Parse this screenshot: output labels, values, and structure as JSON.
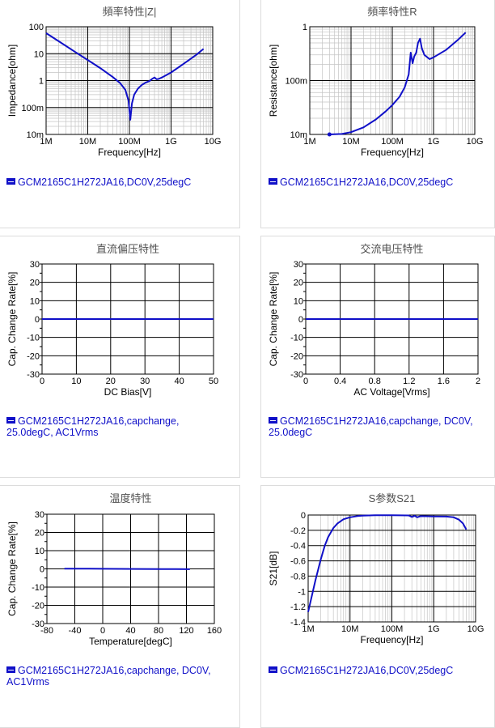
{
  "charts": [
    {
      "id": "c1",
      "title": "頻率特性|Z|",
      "xlabel": "Frequency[Hz]",
      "ylabel": "Impedance[ohm]",
      "legend": "GCM2165C1H272JA16,DC0V,25degC",
      "chart_data": {
        "type": "line",
        "title": "頻率特性|Z|",
        "xlabel": "Frequency[Hz]",
        "ylabel": "Impedance[ohm]",
        "xscale": "log",
        "yscale": "log",
        "xlim": [
          1000000,
          10000000000
        ],
        "ylim": [
          0.01,
          100
        ],
        "xticks": [
          1000000,
          10000000,
          100000000,
          1000000000,
          10000000000
        ],
        "xticklabels": [
          "1M",
          "10M",
          "100M",
          "1G",
          "10G"
        ],
        "yticks": [
          0.01,
          0.1,
          1,
          10,
          100
        ],
        "yticklabels": [
          "10m",
          "100m",
          "1",
          "10",
          "100"
        ],
        "grid": true,
        "series": [
          {
            "name": "GCM2165C1H272JA16,DC0V,25degC",
            "color": "#1010c8",
            "x": [
              1000000,
              2000000,
              5000000,
              10000000,
              20000000,
              40000000,
              60000000,
              80000000,
              95000000,
              105000000,
              115000000,
              130000000,
              160000000,
              200000000,
              250000000,
              300000000,
              350000000,
              400000000,
              450000000,
              500000000,
              600000000,
              800000000,
              1000000000,
              2000000000,
              4000000000,
              6000000000
            ],
            "y": [
              58,
              29,
              11.5,
              5.8,
              2.9,
              1.35,
              0.8,
              0.45,
              0.18,
              0.035,
              0.14,
              0.3,
              0.5,
              0.7,
              0.85,
              0.95,
              1.15,
              1.3,
              1.12,
              1.15,
              1.3,
              1.65,
              2.0,
              4.2,
              9.0,
              15
            ]
          }
        ]
      }
    },
    {
      "id": "c2",
      "title": "頻率特性R",
      "xlabel": "Frequency[Hz]",
      "ylabel": "Resistance[ohm]",
      "legend": "GCM2165C1H272JA16,DC0V,25degC",
      "chart_data": {
        "type": "line",
        "title": "頻率特性R",
        "xlabel": "Frequency[Hz]",
        "ylabel": "Resistance[ohm]",
        "xscale": "log",
        "yscale": "log",
        "xlim": [
          1000000,
          10000000000
        ],
        "ylim": [
          0.01,
          1
        ],
        "xticks": [
          1000000,
          10000000,
          100000000,
          1000000000,
          10000000000
        ],
        "xticklabels": [
          "1M",
          "10M",
          "100M",
          "1G",
          "10G"
        ],
        "yticks": [
          0.01,
          0.1,
          1
        ],
        "yticklabels": [
          "10m",
          "100m",
          "1"
        ],
        "grid": true,
        "series": [
          {
            "name": "GCM2165C1H272JA16,DC0V,25degC",
            "color": "#1010c8",
            "x": [
              3000000,
              6000000,
              10000000,
              20000000,
              40000000,
              70000000,
              100000000,
              150000000,
              200000000,
              250000000,
              280000000,
              310000000,
              340000000,
              380000000,
              420000000,
              470000000,
              520000000,
              600000000,
              800000000,
              1000000000,
              2000000000,
              4000000000,
              6000000000
            ],
            "y": [
              0.01,
              0.0102,
              0.011,
              0.0135,
              0.019,
              0.027,
              0.035,
              0.05,
              0.075,
              0.13,
              0.33,
              0.21,
              0.28,
              0.33,
              0.5,
              0.6,
              0.4,
              0.3,
              0.25,
              0.27,
              0.37,
              0.58,
              0.78
            ]
          }
        ],
        "markers": [
          {
            "x": 3000000,
            "y": 0.01
          }
        ]
      }
    },
    {
      "id": "c3",
      "title": "直流偏压特性",
      "xlabel": "DC Bias[V]",
      "ylabel": "Cap. Change Rate[%]",
      "legend": "GCM2165C1H272JA16,capchange, 25.0degC, AC1Vrms",
      "chart_data": {
        "type": "line",
        "title": "直流偏压特性",
        "xlabel": "DC Bias[V]",
        "ylabel": "Cap. Change Rate[%]",
        "xlim": [
          0,
          50
        ],
        "ylim": [
          -30,
          30
        ],
        "xticks": [
          0,
          10,
          20,
          30,
          40,
          50
        ],
        "yticks": [
          -30,
          -20,
          -10,
          0,
          10,
          20,
          30
        ],
        "minor_y": 5,
        "grid": true,
        "series": [
          {
            "name": "GCM2165C1H272JA16,capchange, 25.0degC, AC1Vrms",
            "color": "#1010c8",
            "x": [
              0,
              10,
              20,
              30,
              40,
              50
            ],
            "y": [
              0,
              0,
              0,
              0,
              0,
              0
            ]
          }
        ]
      }
    },
    {
      "id": "c4",
      "title": "交流电压特性",
      "xlabel": "AC Voltage[Vrms]",
      "ylabel": "Cap. Change Rate[%]",
      "legend": "GCM2165C1H272JA16,capchange, DC0V, 25.0degC",
      "chart_data": {
        "type": "line",
        "title": "交流电压特性",
        "xlabel": "AC Voltage[Vrms]",
        "ylabel": "Cap. Change Rate[%]",
        "xlim": [
          0,
          2
        ],
        "ylim": [
          -30,
          30
        ],
        "xticks": [
          0,
          0.4,
          0.8,
          1.2,
          1.6,
          2
        ],
        "xticklabels": [
          "0",
          "0.4",
          "0.8",
          "1.2",
          "1.6",
          "2"
        ],
        "yticks": [
          -30,
          -20,
          -10,
          0,
          10,
          20,
          30
        ],
        "minor_y": 5,
        "grid": true,
        "series": [
          {
            "name": "GCM2165C1H272JA16,capchange, DC0V, 25.0degC",
            "color": "#1010c8",
            "x": [
              0,
              0.4,
              0.8,
              1.2,
              1.6,
              2
            ],
            "y": [
              0,
              0,
              0,
              0,
              0,
              0
            ]
          }
        ]
      }
    },
    {
      "id": "c5",
      "title": "温度特性",
      "xlabel": "Temperature[degC]",
      "ylabel": "Cap. Change Rate[%]",
      "legend": "GCM2165C1H272JA16,capchange, DC0V, AC1Vrms",
      "chart_data": {
        "type": "line",
        "title": "温度特性",
        "xlabel": "Temperature[degC]",
        "ylabel": "Cap. Change Rate[%]",
        "xlim": [
          -80,
          160
        ],
        "ylim": [
          -30,
          30
        ],
        "xticks": [
          -80,
          -40,
          0,
          40,
          80,
          120,
          160
        ],
        "yticks": [
          -30,
          -20,
          -10,
          0,
          10,
          20,
          30
        ],
        "minor_y": 5,
        "grid": true,
        "series": [
          {
            "name": "GCM2165C1H272JA16,capchange, DC0V, AC1Vrms",
            "color": "#1010c8",
            "x": [
              -55,
              -40,
              -20,
              0,
              25,
              50,
              85,
              105,
              125
            ],
            "y": [
              0.15,
              0.12,
              0.08,
              0.04,
              0,
              -0.05,
              -0.12,
              -0.15,
              -0.2
            ]
          }
        ]
      }
    },
    {
      "id": "c6",
      "title": "S参数S21",
      "xlabel": "Frequency[Hz]",
      "ylabel": "S21[dB]",
      "legend": "GCM2165C1H272JA16,DC0V,25degC",
      "chart_data": {
        "type": "line",
        "title": "S参数S21",
        "xlabel": "Frequency[Hz]",
        "ylabel": "S21[dB]",
        "xscale": "log",
        "xlim": [
          1000000,
          10000000000
        ],
        "ylim": [
          -1.4,
          0
        ],
        "xticks": [
          1000000,
          10000000,
          100000000,
          1000000000,
          10000000000
        ],
        "xticklabels": [
          "1M",
          "10M",
          "100M",
          "1G",
          "10G"
        ],
        "yticks": [
          -1.4,
          -1.2,
          -1,
          -0.8,
          -0.6,
          -0.4,
          -0.2,
          0
        ],
        "yticklabels": [
          "-1.4",
          "-1.2",
          "-1",
          "-0.8",
          "-0.6",
          "-0.4",
          "-0.2",
          "0"
        ],
        "grid": true,
        "series": [
          {
            "name": "GCM2165C1H272JA16,DC0V,25degC",
            "color": "#1010c8",
            "x": [
              1000000,
              1200000,
              1500000,
              2000000,
              2500000,
              3000000,
              4000000,
              5000000,
              7000000,
              10000000,
              15000000,
              20000000,
              40000000,
              100000000,
              250000000,
              300000000,
              350000000,
              400000000,
              450000000,
              500000000,
              1000000000,
              2000000000,
              3000000000,
              4000000000,
              5000000000,
              6000000000
            ],
            "y": [
              -1.27,
              -1.08,
              -0.85,
              -0.58,
              -0.4,
              -0.29,
              -0.17,
              -0.11,
              -0.055,
              -0.03,
              -0.014,
              -0.008,
              -0.003,
              -0.002,
              -0.005,
              -0.025,
              -0.01,
              -0.03,
              -0.02,
              -0.015,
              -0.018,
              -0.02,
              -0.03,
              -0.06,
              -0.11,
              -0.19
            ]
          }
        ]
      }
    }
  ]
}
